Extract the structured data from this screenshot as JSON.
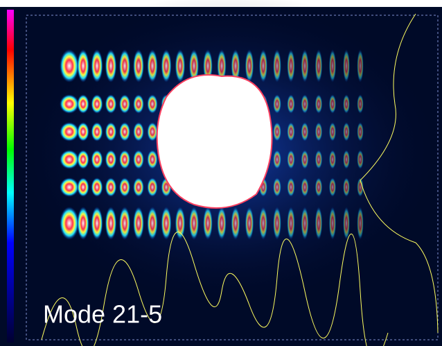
{
  "label": "Mode 21-5"
}
